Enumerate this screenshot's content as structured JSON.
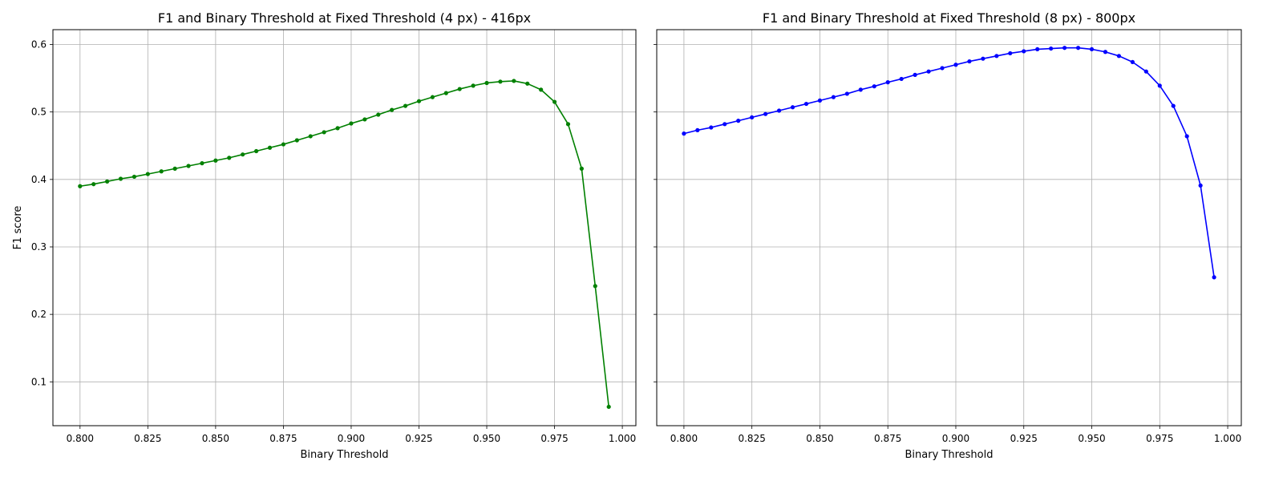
{
  "chart_data": [
    {
      "type": "line",
      "title": "F1 and Binary Threshold at Fixed Threshold (4 px) - 416px",
      "xlabel": "Binary Threshold",
      "ylabel": "F1 score",
      "xlim": [
        0.79,
        1.005
      ],
      "ylim": [
        0.035,
        0.622
      ],
      "xticks": [
        "0.800",
        "0.825",
        "0.850",
        "0.875",
        "0.900",
        "0.925",
        "0.950",
        "0.975",
        "1.000"
      ],
      "yticks": [
        "0.1",
        "0.2",
        "0.3",
        "0.4",
        "0.5",
        "0.6"
      ],
      "grid": true,
      "series": [
        {
          "color": "#008000",
          "x": [
            0.8,
            0.805,
            0.81,
            0.815,
            0.82,
            0.825,
            0.83,
            0.835,
            0.84,
            0.845,
            0.85,
            0.855,
            0.86,
            0.865,
            0.87,
            0.875,
            0.88,
            0.885,
            0.89,
            0.895,
            0.9,
            0.905,
            0.91,
            0.915,
            0.92,
            0.925,
            0.93,
            0.935,
            0.94,
            0.945,
            0.95,
            0.955,
            0.96,
            0.965,
            0.97,
            0.975,
            0.98,
            0.985,
            0.99,
            0.995
          ],
          "y": [
            0.39,
            0.393,
            0.397,
            0.401,
            0.404,
            0.408,
            0.412,
            0.416,
            0.42,
            0.424,
            0.428,
            0.432,
            0.437,
            0.442,
            0.447,
            0.452,
            0.458,
            0.464,
            0.47,
            0.476,
            0.483,
            0.489,
            0.496,
            0.503,
            0.509,
            0.516,
            0.522,
            0.528,
            0.534,
            0.539,
            0.543,
            0.545,
            0.546,
            0.542,
            0.533,
            0.515,
            0.482,
            0.416,
            0.242,
            0.063
          ]
        }
      ]
    },
    {
      "type": "line",
      "title": "F1 and Binary Threshold at Fixed Threshold (8 px) - 800px",
      "xlabel": "Binary Threshold",
      "ylabel": "",
      "xlim": [
        0.79,
        1.005
      ],
      "ylim": [
        0.035,
        0.622
      ],
      "xticks": [
        "0.800",
        "0.825",
        "0.850",
        "0.875",
        "0.900",
        "0.925",
        "0.950",
        "0.975",
        "1.000"
      ],
      "yticks": [
        "0.1",
        "0.2",
        "0.3",
        "0.4",
        "0.5",
        "0.6"
      ],
      "grid": true,
      "series": [
        {
          "color": "#0000ff",
          "x": [
            0.8,
            0.805,
            0.81,
            0.815,
            0.82,
            0.825,
            0.83,
            0.835,
            0.84,
            0.845,
            0.85,
            0.855,
            0.86,
            0.865,
            0.87,
            0.875,
            0.88,
            0.885,
            0.89,
            0.895,
            0.9,
            0.905,
            0.91,
            0.915,
            0.92,
            0.925,
            0.93,
            0.935,
            0.94,
            0.945,
            0.95,
            0.955,
            0.96,
            0.965,
            0.97,
            0.975,
            0.98,
            0.985,
            0.99,
            0.995
          ],
          "y": [
            0.468,
            0.473,
            0.477,
            0.482,
            0.487,
            0.492,
            0.497,
            0.502,
            0.507,
            0.512,
            0.517,
            0.522,
            0.527,
            0.533,
            0.538,
            0.544,
            0.549,
            0.555,
            0.56,
            0.565,
            0.57,
            0.575,
            0.579,
            0.583,
            0.587,
            0.59,
            0.593,
            0.594,
            0.595,
            0.595,
            0.593,
            0.589,
            0.583,
            0.574,
            0.56,
            0.539,
            0.509,
            0.464,
            0.391,
            0.255
          ]
        }
      ]
    }
  ]
}
